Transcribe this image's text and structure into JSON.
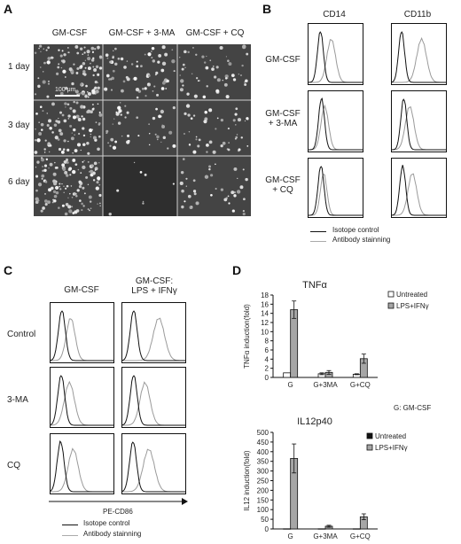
{
  "panels": {
    "a": "A",
    "b": "B",
    "c": "C",
    "d": "D"
  },
  "panelA": {
    "columns": [
      "GM-CSF",
      "GM-CSF + 3-MA",
      "GM-CSF + CQ"
    ],
    "rows": [
      "1 day",
      "3 day",
      "6 day"
    ],
    "scale_bar": "100 μm"
  },
  "panelB": {
    "columns": [
      "CD14",
      "CD11b"
    ],
    "rows": [
      [
        "GM-CSF"
      ],
      [
        "GM-CSF",
        "+ 3-MA"
      ],
      [
        "GM-CSF",
        "+ CQ"
      ]
    ],
    "legend": {
      "isotype": "Isotope control",
      "antibody": "Antibody stainning"
    }
  },
  "panelC": {
    "columns": [
      [
        "GM-CSF"
      ],
      [
        "GM-CSF:",
        "LPS + IFNγ"
      ]
    ],
    "rows": [
      "Control",
      "3-MA",
      "CQ"
    ],
    "xlabel": "PE-CD86",
    "legend": {
      "isotype": "Isotope control",
      "antibody": "Antibody stainning"
    }
  },
  "panelD": {
    "note": "G: GM-CSF"
  },
  "chart_data": [
    {
      "type": "bar",
      "title": "TNFα",
      "ylabel": "TNFα induction(fold)",
      "categories": [
        "G",
        "G+3MA",
        "G+CQ"
      ],
      "ylim": [
        0,
        18
      ],
      "yticks": [
        0,
        2,
        4,
        6,
        8,
        10,
        12,
        14,
        16,
        18
      ],
      "legend_position": "right",
      "series": [
        {
          "name": "Untreated",
          "values": [
            1,
            0.8,
            0.7
          ],
          "errors": [
            0,
            0.2,
            0.1
          ],
          "color": "#ffffff"
        },
        {
          "name": "LPS+IFNγ",
          "values": [
            14.8,
            1.1,
            4.1
          ],
          "errors": [
            1.9,
            0.4,
            1.0
          ],
          "color": "#a6a6a6"
        }
      ]
    },
    {
      "type": "bar",
      "title": "IL12p40",
      "ylabel": "IL12 induction(fold)",
      "categories": [
        "G",
        "G+3MA",
        "G+CQ"
      ],
      "ylim": [
        0,
        500
      ],
      "yticks": [
        0,
        50,
        100,
        150,
        200,
        250,
        300,
        350,
        400,
        450,
        500
      ],
      "legend_position": "right",
      "series": [
        {
          "name": "Untreated",
          "values": [
            1,
            1,
            1
          ],
          "errors": [
            0,
            0,
            0
          ],
          "color": "#111111"
        },
        {
          "name": "LPS+IFNγ",
          "values": [
            365,
            14,
            63
          ],
          "errors": [
            75,
            5,
            15
          ],
          "color": "#a6a6a6"
        }
      ]
    }
  ]
}
